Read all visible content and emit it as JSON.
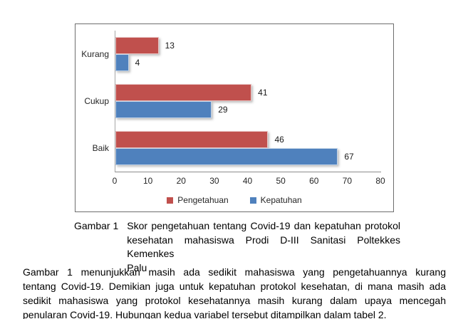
{
  "caption": {
    "label": "Gambar 1",
    "lines": [
      "Skor pengetahuan tentang Covid-19 dan kepatuhan protokol",
      "kesehatan mahasiswa Prodi D-III Sanitasi Poltekkes Kemenkes",
      "Palu"
    ]
  },
  "paragraph": {
    "lines": [
      "Gambar 1 menunjukkan masih ada sedikit mahasiswa yang pengetahuannya kurang",
      "tentang Covid-19. Demikian juga untuk kepatuhan protokol kesehatan, di mana masih ada",
      "sedikit mahasiswa yang protokol kesehatannya masih kurang dalam upaya mencegah",
      "penularan Covid-19. Hubungan kedua variabel tersebut ditampilkan dalam tabel 2."
    ]
  },
  "chart_data": {
    "type": "bar",
    "orientation": "horizontal",
    "categories": [
      "Kurang",
      "Cukup",
      "Baik"
    ],
    "series": [
      {
        "name": "Pengetahuan",
        "color": "#C0504D",
        "values": [
          13,
          41,
          46
        ]
      },
      {
        "name": "Kepatuhan",
        "color": "#4F81BD",
        "values": [
          4,
          29,
          67
        ]
      }
    ],
    "xlim": [
      0,
      80
    ],
    "xticks": [
      0,
      10,
      20,
      30,
      40,
      50,
      60,
      70,
      80
    ],
    "legend_position": "bottom",
    "grid": false,
    "colors": {
      "axis_line": "#a6a6a6",
      "frame_border": "#6e6e6e"
    }
  }
}
